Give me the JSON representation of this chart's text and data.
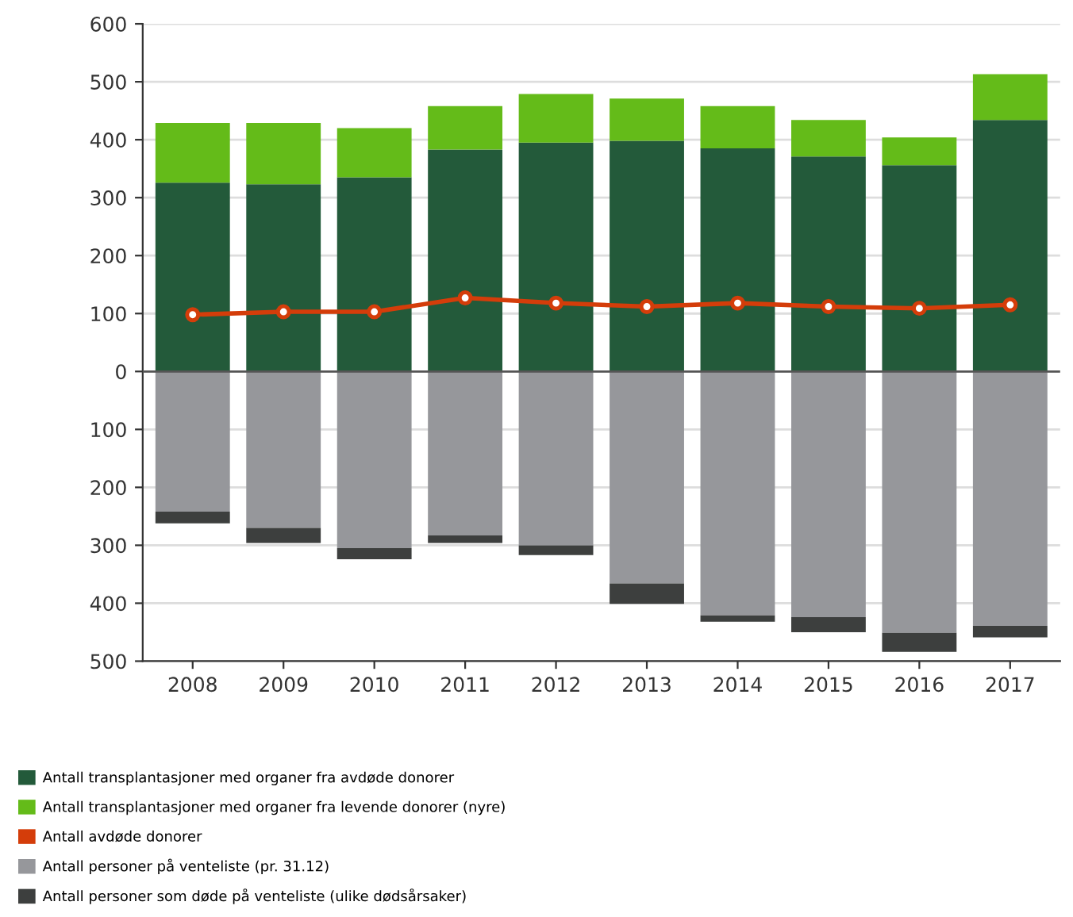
{
  "chart_data": {
    "type": "bar",
    "stacked": true,
    "categories": [
      "2008",
      "2009",
      "2010",
      "2011",
      "2012",
      "2013",
      "2014",
      "2015",
      "2016",
      "2017"
    ],
    "series": [
      {
        "name": "Antall transplantasjoner med organer fra avdøde donorer",
        "color": "#235a3a",
        "values": [
          326,
          323,
          335,
          383,
          395,
          398,
          385,
          371,
          356,
          434
        ]
      },
      {
        "name": "Antall transplantasjoner med organer fra levende donorer (nyre)",
        "color": "#64bb19",
        "values": [
          103,
          106,
          85,
          75,
          84,
          73,
          73,
          63,
          48,
          79
        ]
      },
      {
        "name": "Antall avdøde donorer",
        "color": "#d43d0a",
        "type": "line",
        "marker": "circle",
        "values": [
          98,
          103,
          103,
          127,
          118,
          112,
          118,
          112,
          109,
          115
        ]
      },
      {
        "name": "Antall personer på venteliste (pr. 31.12)",
        "color": "#96979b",
        "values": [
          -242,
          -270,
          -305,
          -283,
          -300,
          -366,
          -421,
          -424,
          -451,
          -439
        ]
      },
      {
        "name": "Antall personer som døde på venteliste (ulike dødsårsaker)",
        "color": "#3d3f3e",
        "values": [
          -20,
          -26,
          -19,
          -13,
          -17,
          -35,
          -11,
          -26,
          -33,
          -20
        ]
      }
    ],
    "ylim": [
      -500,
      600
    ],
    "yticks": [
      {
        "value": -500,
        "label": "500"
      },
      {
        "value": -400,
        "label": "400"
      },
      {
        "value": -300,
        "label": "300"
      },
      {
        "value": -200,
        "label": "200"
      },
      {
        "value": -100,
        "label": "100"
      },
      0,
      100,
      200,
      300,
      400,
      500,
      600
    ],
    "ref_lines": [
      {
        "axis": "y",
        "value": 0,
        "label": null,
        "color": "#555555"
      }
    ],
    "grid": "y",
    "legend": "bottom"
  }
}
